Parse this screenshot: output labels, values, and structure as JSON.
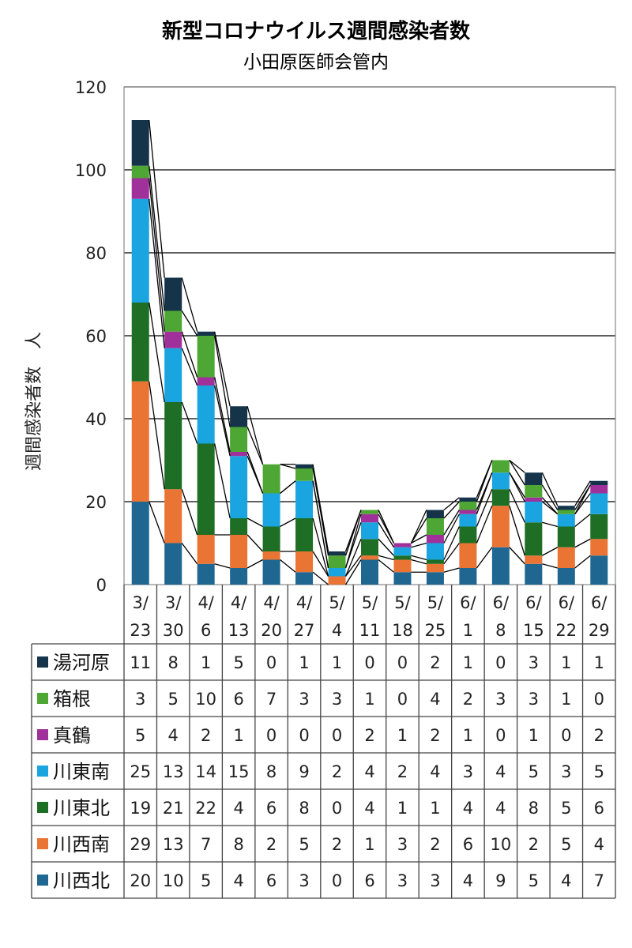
{
  "chart_data": {
    "type": "bar",
    "stacked": true,
    "title": "新型コロナウイルス週間感染者数",
    "subtitle": "小田原医師会管内",
    "ylabel": "週間感染者数　人",
    "ylim": [
      0,
      120
    ],
    "yticks": [
      "0",
      "20",
      "40",
      "60",
      "80",
      "100",
      "120"
    ],
    "grid": true,
    "categories": [
      {
        "month": "3/",
        "day": "23"
      },
      {
        "month": "3/",
        "day": "30"
      },
      {
        "month": "4/",
        "day": "6"
      },
      {
        "month": "4/",
        "day": "13"
      },
      {
        "month": "4/",
        "day": "20"
      },
      {
        "month": "4/",
        "day": "27"
      },
      {
        "month": "5/",
        "day": "4"
      },
      {
        "month": "5/",
        "day": "11"
      },
      {
        "month": "5/",
        "day": "18"
      },
      {
        "month": "5/",
        "day": "25"
      },
      {
        "month": "6/",
        "day": "1"
      },
      {
        "month": "6/",
        "day": "8"
      },
      {
        "month": "6/",
        "day": "15"
      },
      {
        "month": "6/",
        "day": "22"
      },
      {
        "month": "6/",
        "day": "29"
      }
    ],
    "series": [
      {
        "name": "川西北",
        "color": "#1f6791",
        "values": [
          20,
          10,
          5,
          4,
          6,
          3,
          0,
          6,
          3,
          3,
          4,
          9,
          5,
          4,
          7
        ]
      },
      {
        "name": "川西南",
        "color": "#ea7434",
        "values": [
          29,
          13,
          7,
          8,
          2,
          5,
          2,
          1,
          3,
          2,
          6,
          10,
          2,
          5,
          4
        ]
      },
      {
        "name": "川東北",
        "color": "#1e6e25",
        "values": [
          19,
          21,
          22,
          4,
          6,
          8,
          0,
          4,
          1,
          1,
          4,
          4,
          8,
          5,
          6
        ]
      },
      {
        "name": "川東南",
        "color": "#1aa5e0",
        "values": [
          25,
          13,
          14,
          15,
          8,
          9,
          2,
          4,
          2,
          4,
          3,
          4,
          5,
          3,
          5
        ]
      },
      {
        "name": "真鶴",
        "color": "#a0319b",
        "values": [
          5,
          4,
          2,
          1,
          0,
          0,
          0,
          2,
          1,
          2,
          1,
          0,
          1,
          0,
          2
        ]
      },
      {
        "name": "箱根",
        "color": "#4ea734",
        "values": [
          3,
          5,
          10,
          6,
          7,
          3,
          3,
          1,
          0,
          4,
          2,
          3,
          3,
          1,
          0
        ]
      },
      {
        "name": "湯河原",
        "color": "#15344a",
        "values": [
          11,
          8,
          1,
          5,
          0,
          1,
          1,
          0,
          0,
          2,
          1,
          0,
          3,
          1,
          1
        ]
      }
    ]
  }
}
